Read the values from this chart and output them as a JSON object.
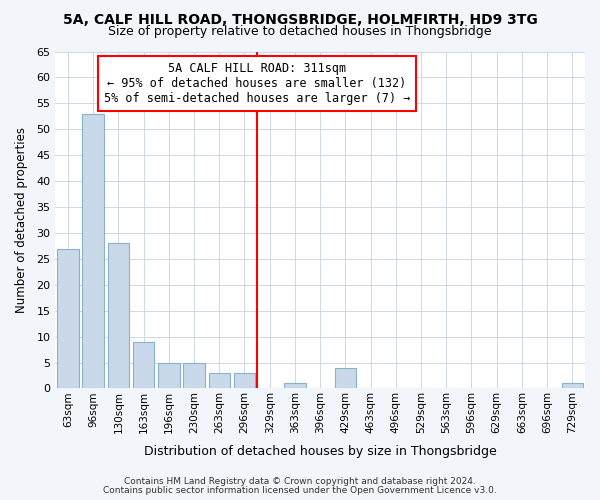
{
  "title1": "5A, CALF HILL ROAD, THONGSBRIDGE, HOLMFIRTH, HD9 3TG",
  "title2": "Size of property relative to detached houses in Thongsbridge",
  "xlabel": "Distribution of detached houses by size in Thongsbridge",
  "ylabel": "Number of detached properties",
  "categories": [
    "63sqm",
    "96sqm",
    "130sqm",
    "163sqm",
    "196sqm",
    "230sqm",
    "263sqm",
    "296sqm",
    "329sqm",
    "363sqm",
    "396sqm",
    "429sqm",
    "463sqm",
    "496sqm",
    "529sqm",
    "563sqm",
    "596sqm",
    "629sqm",
    "663sqm",
    "696sqm",
    "729sqm"
  ],
  "values": [
    27,
    53,
    28,
    9,
    5,
    5,
    3,
    3,
    0,
    1,
    0,
    4,
    0,
    0,
    0,
    0,
    0,
    0,
    0,
    0,
    1
  ],
  "bar_color": "#c9d9ea",
  "bar_edge_color": "#8ab0cc",
  "red_line_index": 8,
  "ylim": [
    0,
    65
  ],
  "yticks": [
    0,
    5,
    10,
    15,
    20,
    25,
    30,
    35,
    40,
    45,
    50,
    55,
    60,
    65
  ],
  "annotation_title": "5A CALF HILL ROAD: 311sqm",
  "annotation_line1": "← 95% of detached houses are smaller (132)",
  "annotation_line2": "5% of semi-detached houses are larger (7) →",
  "footer1": "Contains HM Land Registry data © Crown copyright and database right 2024.",
  "footer2": "Contains public sector information licensed under the Open Government Licence v3.0.",
  "bg_color": "#f2f6fa",
  "plot_bg_color": "#ffffff",
  "title1_fontsize": 10,
  "title2_fontsize": 9,
  "grid_color": "#ccd8e4",
  "annot_fontsize": 8.5
}
